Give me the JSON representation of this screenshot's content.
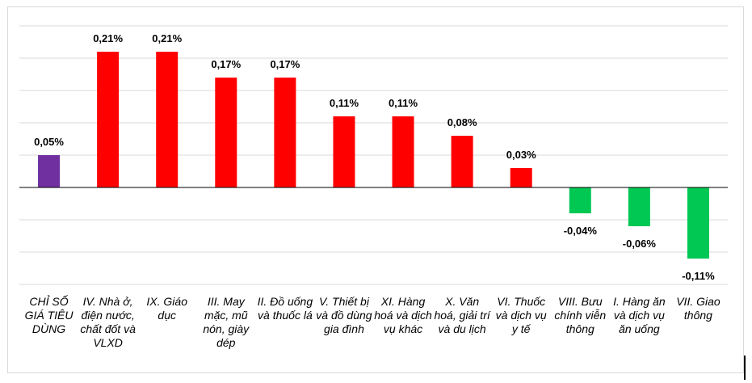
{
  "chart_data": {
    "type": "bar",
    "categories": [
      "CHỈ SỐ GIÁ TIÊU DÙNG",
      "IV. Nhà ở, điện nước, chất đốt và VLXD",
      "IX. Giáo dục",
      "III. May mặc, mũ nón, giày dép",
      "II. Đồ uống và thuốc lá",
      "V. Thiết bị và đồ dùng gia đình",
      "XI. Hàng hoá và dịch vụ khác",
      "X. Văn hoá, giải trí và du lịch",
      "VI. Thuốc và dịch vụ y tế",
      "VIII. Bưu chính viễn thông",
      "I. Hàng ăn và dịch vụ ăn uống",
      "VII. Giao thông"
    ],
    "values": [
      0.05,
      0.21,
      0.21,
      0.17,
      0.17,
      0.11,
      0.11,
      0.08,
      0.03,
      -0.04,
      -0.06,
      -0.11
    ],
    "value_labels": [
      "0,05%",
      "0,21%",
      "0,21%",
      "0,17%",
      "0,17%",
      "0,11%",
      "0,11%",
      "0,08%",
      "0,03%",
      "-0,04%",
      "-0,06%",
      "-0,11%"
    ],
    "bar_colors": [
      "#7030A0",
      "#FF0000",
      "#FF0000",
      "#FF0000",
      "#FF0000",
      "#FF0000",
      "#FF0000",
      "#FF0000",
      "#FF0000",
      "#00C853",
      "#00C853",
      "#00C853"
    ],
    "colors": {
      "total": "#7030A0",
      "increase": "#FF0000",
      "decrease": "#00C853"
    },
    "ylim": [
      -0.15,
      0.25
    ],
    "grid": true,
    "legend": "none",
    "title": "",
    "xlabel": "",
    "ylabel": ""
  }
}
